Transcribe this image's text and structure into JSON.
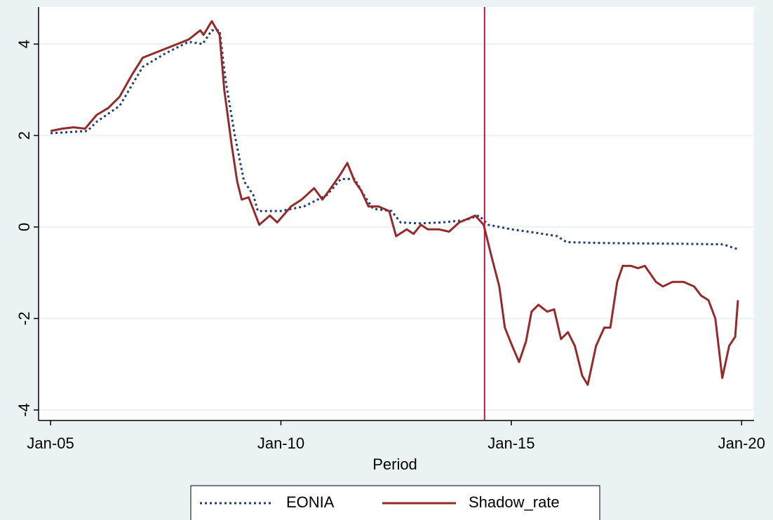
{
  "chart_data": {
    "type": "line",
    "x_label": "Period",
    "xlim": [
      2004.74,
      2020.27
    ],
    "xticks": [
      {
        "value": 2005,
        "label": "Jan-05"
      },
      {
        "value": 2010,
        "label": "Jan-10"
      },
      {
        "value": 2015,
        "label": "Jan-15"
      },
      {
        "value": 2020,
        "label": "Jan-20"
      }
    ],
    "ylim": [
      -4.23,
      4.81
    ],
    "yticks": [
      -4,
      -2,
      0,
      2,
      4
    ],
    "grid": true,
    "vline": {
      "x": 2014.42,
      "color": "#c0143c"
    },
    "legend": "bottom",
    "series": [
      {
        "name": "EONIA",
        "color": "#1f3d6e",
        "style": "dotted",
        "x": [
          2005.0,
          2005.8,
          2006.0,
          2006.5,
          2007.0,
          2007.5,
          2008.0,
          2008.3,
          2008.5,
          2008.67,
          2008.8,
          2009.0,
          2009.2,
          2009.4,
          2009.5,
          2010.0,
          2010.5,
          2011.0,
          2011.3,
          2011.6,
          2011.8,
          2012.0,
          2012.4,
          2012.6,
          2013.0,
          2013.5,
          2014.0,
          2014.3,
          2014.5,
          2015.0,
          2015.5,
          2016.0,
          2016.2,
          2017.0,
          2018.0,
          2019.0,
          2019.6,
          2019.9
        ],
        "values": [
          2.05,
          2.1,
          2.3,
          2.65,
          3.5,
          3.8,
          4.05,
          4.0,
          4.3,
          4.3,
          3.2,
          2.0,
          1.0,
          0.7,
          0.35,
          0.35,
          0.45,
          0.7,
          1.05,
          1.05,
          0.7,
          0.4,
          0.35,
          0.1,
          0.08,
          0.1,
          0.15,
          0.25,
          0.05,
          -0.05,
          -0.12,
          -0.2,
          -0.33,
          -0.35,
          -0.36,
          -0.37,
          -0.38,
          -0.48
        ]
      },
      {
        "name": "Shadow_rate",
        "color": "#962a2a",
        "style": "solid",
        "x": [
          2005.0,
          2005.25,
          2005.5,
          2005.75,
          2006.0,
          2006.25,
          2006.5,
          2006.75,
          2007.0,
          2007.5,
          2008.0,
          2008.25,
          2008.32,
          2008.5,
          2008.67,
          2008.77,
          2008.93,
          2009.05,
          2009.15,
          2009.3,
          2009.53,
          2009.76,
          2009.92,
          2010.22,
          2010.45,
          2010.72,
          2010.9,
          2011.05,
          2011.29,
          2011.44,
          2011.6,
          2011.74,
          2011.9,
          2012.12,
          2012.35,
          2012.5,
          2012.73,
          2012.88,
          2013.04,
          2013.19,
          2013.42,
          2013.65,
          2013.87,
          2014.22,
          2014.4,
          2014.56,
          2014.74,
          2014.86,
          2015.02,
          2015.17,
          2015.32,
          2015.44,
          2015.59,
          2015.78,
          2015.93,
          2016.08,
          2016.23,
          2016.38,
          2016.54,
          2016.66,
          2016.84,
          2017.02,
          2017.15,
          2017.3,
          2017.42,
          2017.6,
          2017.75,
          2017.9,
          2018.14,
          2018.29,
          2018.5,
          2018.74,
          2018.97,
          2019.12,
          2019.28,
          2019.43,
          2019.58,
          2019.73,
          2019.86,
          2019.92
        ],
        "values": [
          2.1,
          2.15,
          2.18,
          2.15,
          2.45,
          2.6,
          2.85,
          3.3,
          3.7,
          3.9,
          4.1,
          4.3,
          4.2,
          4.5,
          4.2,
          3.0,
          1.8,
          1.0,
          0.6,
          0.65,
          0.05,
          0.25,
          0.1,
          0.45,
          0.6,
          0.85,
          0.6,
          0.8,
          1.15,
          1.4,
          1.0,
          0.8,
          0.45,
          0.45,
          0.35,
          -0.2,
          -0.05,
          -0.15,
          0.05,
          -0.05,
          -0.05,
          -0.1,
          0.1,
          0.25,
          0.05,
          -0.6,
          -1.3,
          -2.2,
          -2.6,
          -2.95,
          -2.5,
          -1.85,
          -1.7,
          -1.85,
          -1.8,
          -2.45,
          -2.3,
          -2.6,
          -3.25,
          -3.45,
          -2.6,
          -2.2,
          -2.2,
          -1.2,
          -0.85,
          -0.85,
          -0.9,
          -0.85,
          -1.2,
          -1.3,
          -1.2,
          -1.2,
          -1.3,
          -1.5,
          -1.6,
          -2.0,
          -3.3,
          -2.6,
          -2.4,
          -1.6
        ]
      }
    ]
  }
}
